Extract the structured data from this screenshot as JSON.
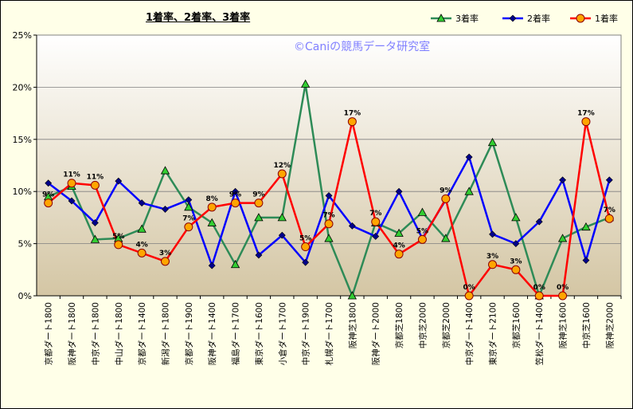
{
  "chart_data": {
    "type": "line",
    "title": "1着率、2着率、3着率",
    "watermark": "©Caniの競馬データ研究室",
    "categories": [
      "京都ダート1800",
      "阪神ダート1800",
      "中京ダート1800",
      "中山ダート1800",
      "京都ダート1400",
      "新潟ダート1800",
      "京都ダート1900",
      "阪神ダート1400",
      "福島ダート1700",
      "東京ダート1600",
      "小倉ダート1700",
      "中京ダート1900",
      "札幌ダート1700",
      "阪神芝1800",
      "阪神ダート2000",
      "京都芝1800",
      "中京芝2000",
      "京都芝2000",
      "中京ダート1400",
      "東京ダート2100",
      "京都芝1600",
      "笠松ダート1400",
      "阪神芝1600",
      "中京芝1600",
      "阪神芝2000"
    ],
    "ylim": [
      0,
      25
    ],
    "yticks": [
      "0%",
      "5%",
      "10%",
      "15%",
      "20%",
      "25%"
    ],
    "legend_position": "top-right",
    "series": [
      {
        "name": "3着率",
        "color": "#2e8b57",
        "marker_color": "#32cd32",
        "marker": "triangle",
        "values": [
          9.5,
          10.5,
          5.4,
          5.5,
          6.4,
          12.0,
          8.5,
          7.0,
          3.0,
          7.5,
          7.5,
          20.3,
          5.5,
          0,
          7.0,
          6.0,
          8.0,
          5.5,
          10.0,
          14.7,
          7.5,
          0,
          5.5,
          6.6,
          7.5
        ]
      },
      {
        "name": "2着率",
        "color": "#0000ff",
        "marker_color": "#00008b",
        "marker": "diamond",
        "values": [
          10.8,
          9.1,
          7.0,
          11.0,
          8.9,
          8.3,
          9.2,
          2.9,
          10.0,
          3.9,
          5.8,
          3.2,
          9.6,
          6.7,
          5.7,
          10.0,
          5.5,
          9.2,
          13.3,
          5.9,
          5.0,
          7.1,
          11.1,
          3.4,
          11.1
        ]
      },
      {
        "name": "1着率",
        "color": "#ff0000",
        "marker_color": "#ffa500",
        "marker": "circle",
        "values": [
          8.9,
          10.8,
          10.6,
          4.9,
          4.1,
          3.3,
          6.6,
          8.5,
          8.9,
          8.9,
          11.7,
          4.7,
          6.9,
          16.7,
          7.1,
          4.0,
          5.4,
          9.3,
          0,
          3.0,
          2.5,
          0,
          0,
          16.7,
          7.4
        ],
        "data_labels": [
          "9%",
          "11%",
          "11%",
          "5%",
          "4%",
          "3%",
          "7%",
          "8%",
          "9%",
          "9%",
          "12%",
          "5%",
          "7%",
          "17%",
          "7%",
          "4%",
          "5%",
          "9%",
          "0%",
          "3%",
          "3%",
          "0%",
          "0%",
          "17%",
          "7%"
        ]
      }
    ],
    "legend_order": [
      "3着率",
      "2着率",
      "1着率"
    ],
    "colors": {
      "plot_gradient_top": "#ffffff",
      "plot_gradient_bottom": "#d4c6a4",
      "frame_bg": "#ffffe8"
    }
  }
}
